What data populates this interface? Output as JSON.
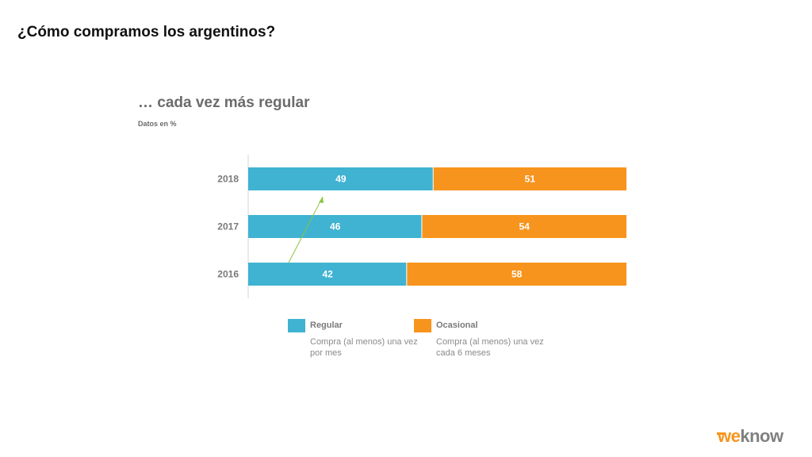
{
  "page": {
    "title": "¿Cómo compramos los argentinos?"
  },
  "chart_data": {
    "type": "bar",
    "stacked": true,
    "orientation": "horizontal",
    "title": "… cada vez más regular",
    "subtitle": "Datos en %",
    "categories": [
      "2018",
      "2017",
      "2016"
    ],
    "series": [
      {
        "name": "Regular",
        "values": [
          49,
          46,
          42
        ],
        "color": "#3fb3d1"
      },
      {
        "name": "Ocasional",
        "values": [
          51,
          54,
          58
        ],
        "color": "#f7941d"
      }
    ],
    "xlim": [
      0,
      100
    ],
    "grid": false,
    "legend_position": "bottom",
    "annotation": {
      "type": "arrow",
      "color": "#8cc63f",
      "from": "2016 Regular",
      "to": "2018 Regular"
    }
  },
  "legend": [
    {
      "label": "Regular",
      "desc": "Compra (al menos) una vez por mes",
      "color": "#3fb3d1"
    },
    {
      "label": "Ocasional",
      "desc": "Compra (al menos) una vez cada 6 meses",
      "color": "#f7941d"
    }
  ],
  "logo": {
    "text": "weknow",
    "part1": "we",
    "part2": "know",
    "color1": "#f7941d",
    "color2": "#808080"
  }
}
